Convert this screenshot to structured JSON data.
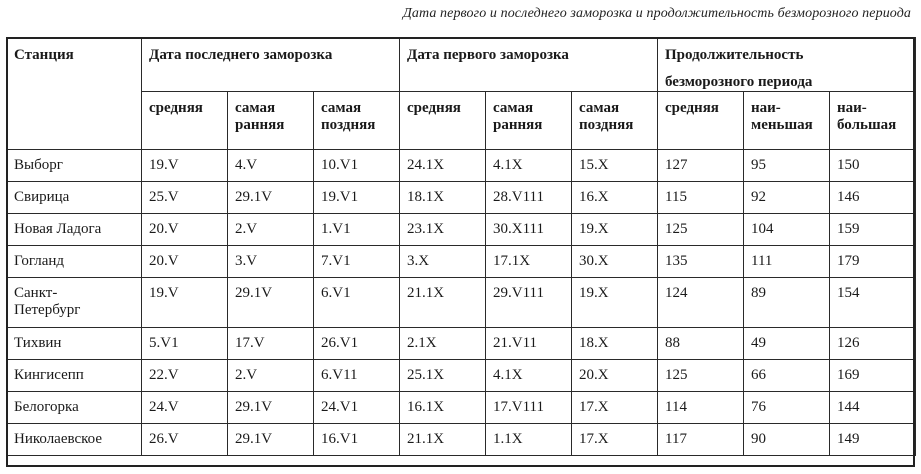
{
  "caption": "Дата первого и последнего заморозка и продолжительность безморозного периода",
  "header": {
    "station": "Станция",
    "last_frost": "Дата последнего заморозка",
    "first_frost": "Дата первого заморозка",
    "duration_line1": "Продолжительность",
    "duration_line2": "безморозного периода",
    "sub": {
      "avg": "средняя",
      "earliest_1": "самая",
      "earliest_2": "ранняя",
      "latest_1": "самая",
      "latest_2": "поздняя",
      "avg2": "средняя",
      "earliest2_1": "самая",
      "earliest2_2": "ранняя",
      "latest2_1": "самая",
      "latest2_2": "поздняя",
      "dur_avg": "средняя",
      "min_1": "наи-",
      "min_2": "меньшая",
      "max_1": "наи-",
      "max_2": "большая"
    }
  },
  "rows": [
    {
      "station": [
        "Выборг"
      ],
      "last_avg": "19.V",
      "last_early": "4.V",
      "last_late": "10.V1",
      "first_avg": "24.1X",
      "first_early": "4.1X",
      "first_late": "15.X",
      "dur_avg": "127",
      "dur_min": "95",
      "dur_max": "150"
    },
    {
      "station": [
        "Свирица"
      ],
      "last_avg": "25.V",
      "last_early": "29.1V",
      "last_late": "19.V1",
      "first_avg": "18.1X",
      "first_early": "28.V111",
      "first_late": "16.X",
      "dur_avg": "115",
      "dur_min": "92",
      "dur_max": "146"
    },
    {
      "station": [
        "Новая Ладога"
      ],
      "last_avg": "20.V",
      "last_early": "2.V",
      "last_late": "1.V1",
      "first_avg": "23.1X",
      "first_early": "30.X111",
      "first_late": "19.X",
      "dur_avg": "125",
      "dur_min": "104",
      "dur_max": "159"
    },
    {
      "station": [
        "Гогланд"
      ],
      "last_avg": "20.V",
      "last_early": "3.V",
      "last_late": "7.V1",
      "first_avg": "3.X",
      "first_early": "17.1X",
      "first_late": "30.X",
      "dur_avg": "135",
      "dur_min": "111",
      "dur_max": "179"
    },
    {
      "station": [
        "Санкт-",
        "Петербург"
      ],
      "last_avg": "19.V",
      "last_early": "29.1V",
      "last_late": "6.V1",
      "first_avg": "21.1X",
      "first_early": "29.V111",
      "first_late": "19.X",
      "dur_avg": "124",
      "dur_min": "89",
      "dur_max": "154"
    },
    {
      "station": [
        "Тихвин"
      ],
      "last_avg": "5.V1",
      "last_early": "17.V",
      "last_late": "26.V1",
      "first_avg": "2.1X",
      "first_early": "21.V11",
      "first_late": "18.X",
      "dur_avg": "88",
      "dur_min": "49",
      "dur_max": "126"
    },
    {
      "station": [
        "Кингисепп"
      ],
      "last_avg": "22.V",
      "last_early": "2.V",
      "last_late": "6.V11",
      "first_avg": "25.1X",
      "first_early": "4.1X",
      "first_late": "20.X",
      "dur_avg": "125",
      "dur_min": "66",
      "dur_max": "169"
    },
    {
      "station": [
        "Белогорка"
      ],
      "last_avg": "24.V",
      "last_early": "29.1V",
      "last_late": "24.V1",
      "first_avg": "16.1X",
      "first_early": "17.V111",
      "first_late": "17.X",
      "dur_avg": "114",
      "dur_min": "76",
      "dur_max": "144"
    },
    {
      "station": [
        "Николаевское"
      ],
      "last_avg": "26.V",
      "last_early": "29.1V",
      "last_late": "16.V1",
      "first_avg": "21.1X",
      "first_early": "1.1X",
      "first_late": "17.X",
      "dur_avg": "117",
      "dur_min": "90",
      "dur_max": "149"
    }
  ]
}
